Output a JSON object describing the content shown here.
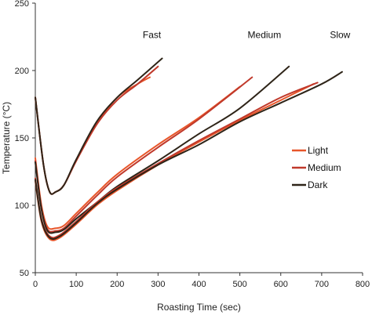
{
  "chart_data": {
    "type": "line",
    "title": "",
    "xlabel": "Roasting Time (sec)",
    "ylabel": "Temperature (°C)",
    "xlim": [
      0,
      800
    ],
    "ylim": [
      50,
      250
    ],
    "xticks": [
      0,
      100,
      200,
      300,
      400,
      500,
      600,
      700,
      800
    ],
    "yticks": [
      50,
      100,
      150,
      200,
      250
    ],
    "grid": false,
    "legend_position": "right",
    "annotations": [
      "Fast",
      "Medium",
      "Slow"
    ],
    "series_colors": {
      "Light": "#e8562a",
      "Medium": "#c0392b",
      "Dark": "#2e2418"
    },
    "series": [
      {
        "name": "Light",
        "group": "Fast",
        "x": [
          0,
          20,
          35,
          50,
          70,
          100,
          150,
          200,
          250,
          280
        ],
        "y": [
          180,
          130,
          110,
          110,
          115,
          133,
          160,
          180,
          190,
          195
        ]
      },
      {
        "name": "Medium",
        "group": "Fast",
        "x": [
          0,
          20,
          35,
          50,
          70,
          100,
          150,
          200,
          250,
          300
        ],
        "y": [
          180,
          130,
          110,
          110,
          115,
          133,
          160,
          178,
          190,
          203
        ]
      },
      {
        "name": "Dark",
        "group": "Fast",
        "x": [
          0,
          20,
          35,
          50,
          70,
          100,
          150,
          200,
          250,
          310
        ],
        "y": [
          180,
          130,
          110,
          110,
          115,
          134,
          162,
          180,
          193,
          209
        ]
      },
      {
        "name": "Light",
        "group": "Medium",
        "x": [
          0,
          15,
          30,
          50,
          70,
          100,
          150,
          200,
          300,
          400,
          500
        ],
        "y": [
          135,
          100,
          84,
          83,
          85,
          94,
          109,
          123,
          145,
          165,
          188
        ]
      },
      {
        "name": "Medium",
        "group": "Medium",
        "x": [
          0,
          15,
          30,
          50,
          70,
          100,
          150,
          200,
          300,
          400,
          530
        ],
        "y": [
          133,
          98,
          82,
          81,
          83,
          92,
          107,
          121,
          143,
          164,
          195
        ]
      },
      {
        "name": "Dark",
        "group": "Medium",
        "x": [
          0,
          15,
          30,
          50,
          70,
          100,
          150,
          200,
          300,
          400,
          500,
          620
        ],
        "y": [
          132,
          97,
          81,
          80,
          82,
          90,
          102,
          114,
          133,
          153,
          172,
          203
        ]
      },
      {
        "name": "Light",
        "group": "Slow",
        "x": [
          0,
          15,
          35,
          60,
          100,
          150,
          200,
          300,
          400,
          500,
          600,
          680
        ],
        "y": [
          118,
          88,
          75,
          76,
          86,
          100,
          111,
          130,
          147,
          163,
          178,
          190
        ]
      },
      {
        "name": "Medium",
        "group": "Slow",
        "x": [
          0,
          15,
          35,
          60,
          100,
          150,
          200,
          300,
          400,
          500,
          600,
          690
        ],
        "y": [
          120,
          90,
          77,
          78,
          88,
          102,
          113,
          131,
          148,
          164,
          180,
          191
        ]
      },
      {
        "name": "Dark",
        "group": "Slow",
        "x": [
          0,
          15,
          35,
          60,
          100,
          150,
          200,
          300,
          400,
          500,
          600,
          700,
          750
        ],
        "y": [
          119,
          89,
          76,
          77,
          87,
          101,
          112,
          130,
          145,
          162,
          176,
          190,
          199
        ]
      }
    ],
    "legend": [
      {
        "name": "Light",
        "color": "#e8562a"
      },
      {
        "name": "Medium",
        "color": "#c0392b"
      },
      {
        "name": "Dark",
        "color": "#2e2418"
      }
    ]
  }
}
